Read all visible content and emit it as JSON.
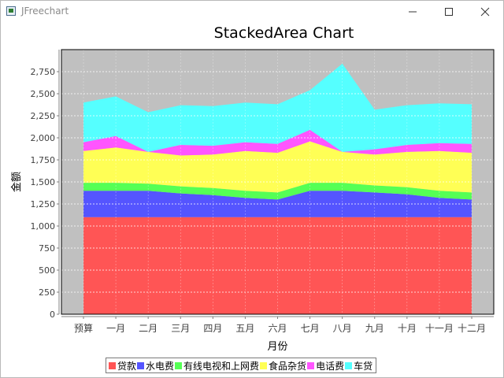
{
  "window": {
    "title": "JFreechart"
  },
  "chart_data": {
    "type": "area",
    "stacked": true,
    "title": "StackedArea Chart",
    "xlabel": "月份",
    "ylabel": "金额",
    "categories": [
      "预算",
      "一月",
      "二月",
      "三月",
      "四月",
      "五月",
      "六月",
      "七月",
      "八月",
      "九月",
      "十月",
      "十一月",
      "十二月"
    ],
    "ylim": [
      0,
      3000
    ],
    "yticks": [
      0,
      250,
      500,
      750,
      1000,
      1250,
      1500,
      1750,
      2000,
      2250,
      2500,
      2750
    ],
    "ytick_labels": [
      "0",
      "250",
      "500",
      "750",
      "1,000",
      "1,250",
      "1,500",
      "1,750",
      "2,000",
      "2,250",
      "2,500",
      "2,750"
    ],
    "grid": true,
    "legend_position": "bottom",
    "background": "#c0c0c0",
    "series": [
      {
        "name": "贷款",
        "color": "#ff5555",
        "values": [
          1100,
          1100,
          1100,
          1100,
          1100,
          1100,
          1100,
          1100,
          1100,
          1100,
          1100,
          1100,
          1100
        ]
      },
      {
        "name": "水电费",
        "color": "#5555ff",
        "values": [
          300,
          300,
          300,
          270,
          250,
          220,
          200,
          300,
          300,
          280,
          260,
          220,
          200
        ]
      },
      {
        "name": "有线电视和上网费",
        "color": "#55ff55",
        "values": [
          90,
          90,
          80,
          80,
          80,
          80,
          80,
          90,
          90,
          80,
          80,
          80,
          80
        ]
      },
      {
        "name": "食品杂货",
        "color": "#ffff55",
        "values": [
          360,
          400,
          360,
          350,
          380,
          450,
          450,
          470,
          350,
          350,
          400,
          450,
          450
        ]
      },
      {
        "name": "电话费",
        "color": "#ff55ff",
        "values": [
          100,
          130,
          0,
          120,
          100,
          100,
          100,
          130,
          0,
          60,
          80,
          90,
          100
        ]
      },
      {
        "name": "车贷",
        "color": "#55ffff",
        "values": [
          450,
          450,
          450,
          450,
          450,
          450,
          450,
          450,
          1000,
          450,
          450,
          450,
          450
        ]
      }
    ]
  }
}
